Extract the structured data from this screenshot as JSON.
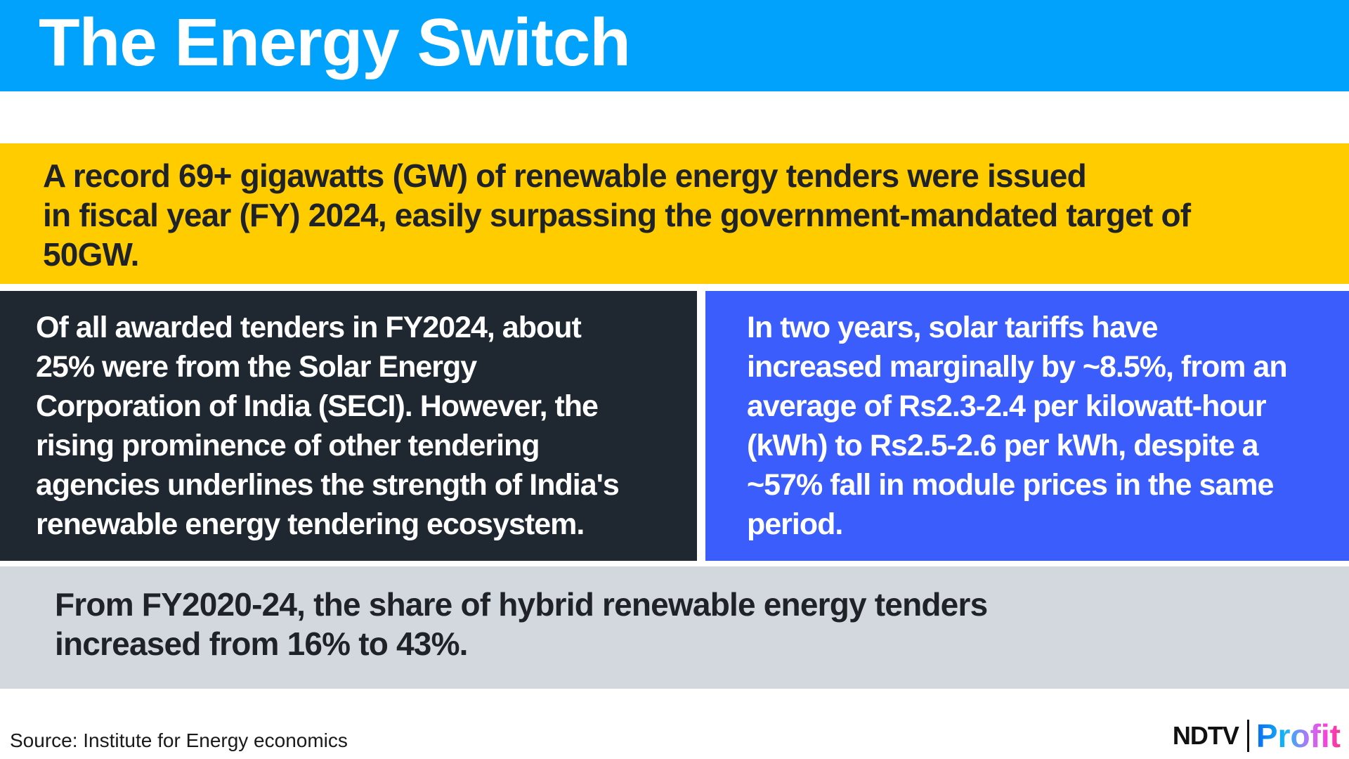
{
  "header": {
    "title": "The Energy Switch",
    "color": "#00a2fb"
  },
  "highlight": {
    "color": "#ffcc00",
    "lines": [
      "A record 69+ gigawatts (GW) of renewable energy tenders were issued",
      "in fiscal year (FY) 2024, easily surpassing the government-mandated target of",
      "50GW."
    ]
  },
  "left_panel": {
    "color": "#1f2830",
    "lines": [
      "Of all awarded tenders in FY2024, about",
      "25% were from the Solar Energy",
      "Corporation of India (SECI). However, the",
      "rising prominence of other tendering",
      "agencies underlines the strength of India's",
      "renewable energy tendering ecosystem."
    ]
  },
  "right_panel": {
    "color": "#3a5dfc",
    "lines": [
      "In two years, solar tariffs have",
      "increased marginally by ~8.5%, from an",
      "average of Rs2.3-2.4 per kilowatt-hour",
      "(kWh) to Rs2.5-2.6 per kWh, despite a",
      "~57% fall in module prices in the same",
      "period."
    ]
  },
  "bottom_panel": {
    "color": "#d2d8de",
    "lines": [
      "From FY2020-24, the share of hybrid renewable energy tenders",
      "increased from 16% to 43%."
    ]
  },
  "footer": {
    "source": "Source: Institute for Energy economics",
    "logo": {
      "brand": "NDTV",
      "product": "Profit"
    }
  }
}
